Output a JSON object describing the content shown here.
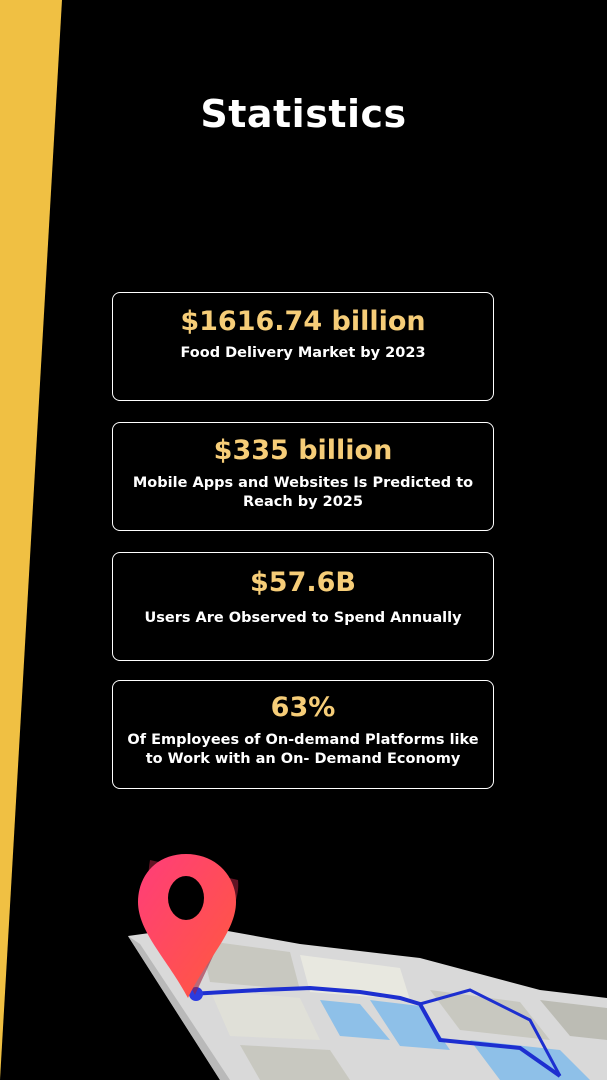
{
  "page": {
    "title": "Statistics",
    "colors": {
      "background": "#000000",
      "accent_yellow": "#f0c043",
      "value_text": "#f6cd78",
      "text": "#ffffff"
    }
  },
  "stats": [
    {
      "value": "$1616.74 billion",
      "label": "Food Delivery Market by 2023"
    },
    {
      "value": "$335 billion",
      "label": "Mobile Apps and Websites Is Predicted to Reach by 2025"
    },
    {
      "value": "$57.6B",
      "label": "Users Are Observed to Spend Annually"
    },
    {
      "value": "63%",
      "label": "Of Employees of On-demand Platforms like to Work with an On- Demand Economy"
    }
  ],
  "illustration": {
    "icons": [
      "location-pin-icon",
      "route-map-icon"
    ]
  }
}
